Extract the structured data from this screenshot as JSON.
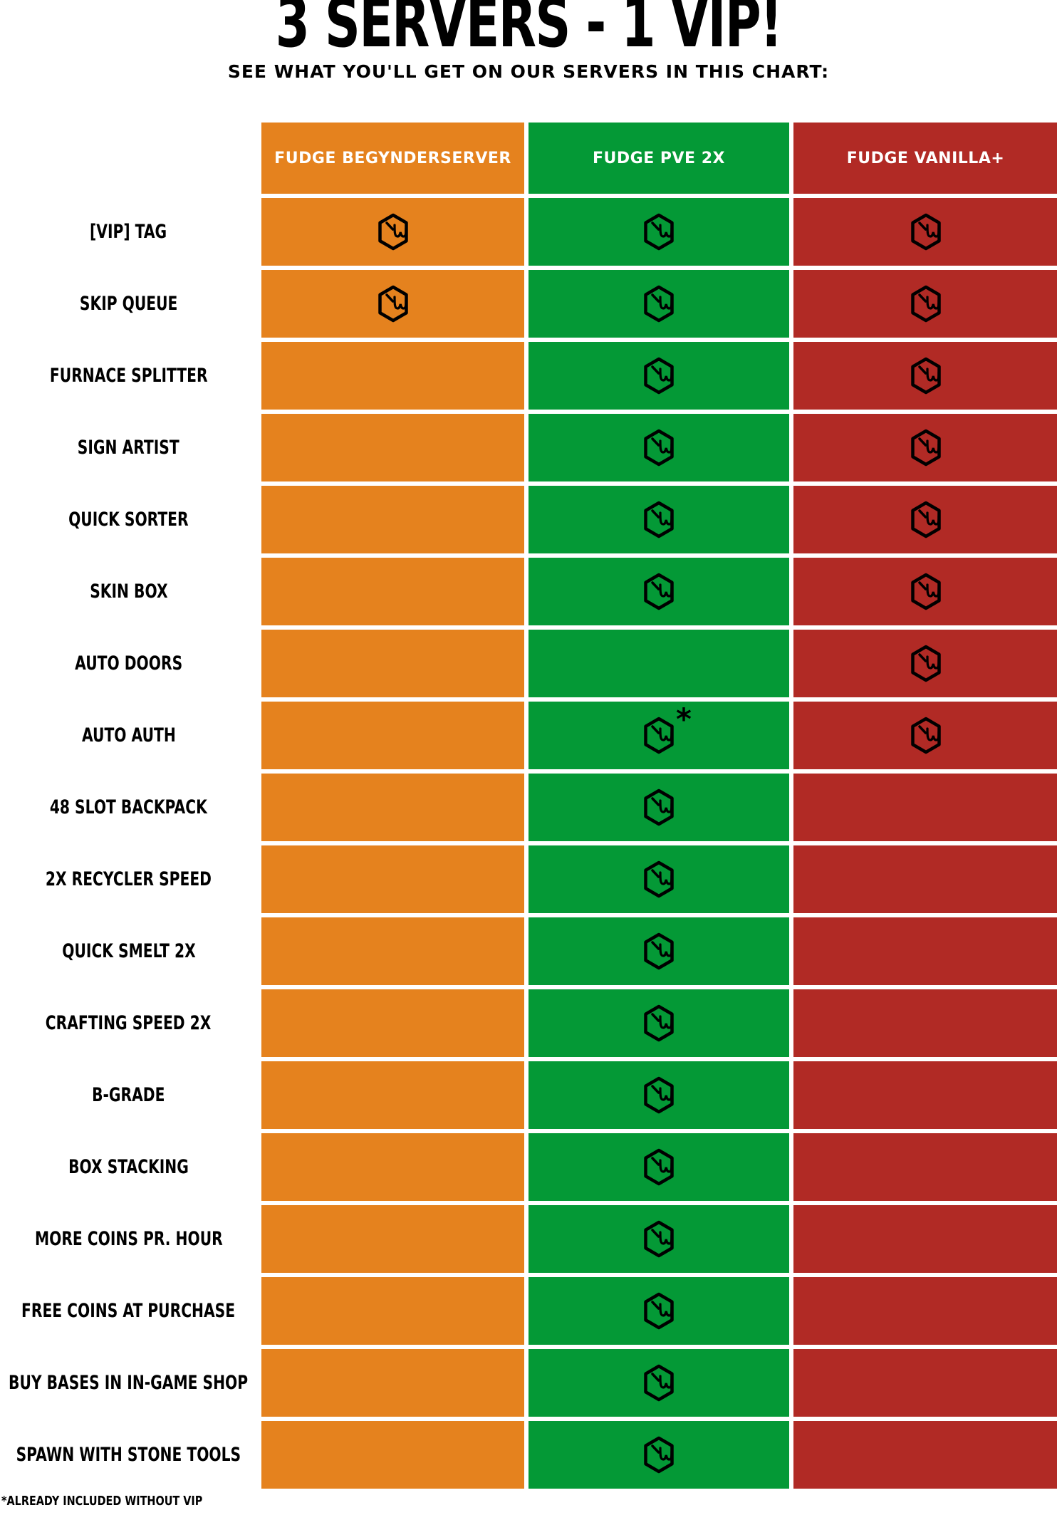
{
  "title": "3 SERVERS - 1 VIP!",
  "subtitle": "SEE WHAT YOU'LL GET ON OUR SERVERS IN THIS CHART:",
  "footnote": "*ALREADY INCLUDED WITHOUT VIP",
  "colors": {
    "orange": "#E5821E",
    "green": "#049936",
    "red": "#B12A25",
    "header_text": "#FFFFFF",
    "body_text": "#000000",
    "background": "#FFFFFF",
    "icon_stroke": "#000000"
  },
  "icon": {
    "name": "fudge-cube-icon",
    "meaning": "feature included (winking cube logo)"
  },
  "chart_data": {
    "type": "table",
    "title": "3 SERVERS - 1 VIP!",
    "subtitle": "SEE WHAT YOU'LL GET ON OUR SERVERS IN THIS CHART:",
    "columns": [
      "FUDGE BEGYNDERSERVER",
      "FUDGE PVE 2X",
      "FUDGE VANILLA+"
    ],
    "legend": {
      "yes": "included",
      "yes*": "included, already included without VIP",
      "no": "not included"
    },
    "rows": [
      {
        "feature": "[VIP] TAG",
        "cells": [
          "yes",
          "yes",
          "yes"
        ]
      },
      {
        "feature": "SKIP QUEUE",
        "cells": [
          "yes",
          "yes",
          "yes"
        ]
      },
      {
        "feature": "FURNACE SPLITTER",
        "cells": [
          "no",
          "yes",
          "yes"
        ]
      },
      {
        "feature": "SIGN ARTIST",
        "cells": [
          "no",
          "yes",
          "yes"
        ]
      },
      {
        "feature": "QUICK SORTER",
        "cells": [
          "no",
          "yes",
          "yes"
        ]
      },
      {
        "feature": "SKIN BOX",
        "cells": [
          "no",
          "yes",
          "yes"
        ]
      },
      {
        "feature": "AUTO DOORS",
        "cells": [
          "no",
          "no",
          "yes"
        ]
      },
      {
        "feature": "AUTO AUTH",
        "cells": [
          "no",
          "yes*",
          "yes"
        ]
      },
      {
        "feature": "48 SLOT BACKPACK",
        "cells": [
          "no",
          "yes",
          "no"
        ]
      },
      {
        "feature": "2X RECYCLER SPEED",
        "cells": [
          "no",
          "yes",
          "no"
        ]
      },
      {
        "feature": "QUICK SMELT 2X",
        "cells": [
          "no",
          "yes",
          "no"
        ]
      },
      {
        "feature": "CRAFTING SPEED 2X",
        "cells": [
          "no",
          "yes",
          "no"
        ]
      },
      {
        "feature": "B-GRADE",
        "cells": [
          "no",
          "yes",
          "no"
        ]
      },
      {
        "feature": "BOX STACKING",
        "cells": [
          "no",
          "yes",
          "no"
        ]
      },
      {
        "feature": "MORE COINS PR. HOUR",
        "cells": [
          "no",
          "yes",
          "no"
        ]
      },
      {
        "feature": "FREE COINS AT PURCHASE",
        "cells": [
          "no",
          "yes",
          "no"
        ]
      },
      {
        "feature": "BUY BASES IN IN-GAME SHOP",
        "cells": [
          "no",
          "yes",
          "no"
        ]
      },
      {
        "feature": "SPAWN WITH STONE TOOLS",
        "cells": [
          "no",
          "yes",
          "no"
        ]
      }
    ]
  },
  "columns_meta": [
    {
      "id": "fudge-begynderserver",
      "label": "FUDGE BEGYNDERSERVER",
      "color_key": "orange"
    },
    {
      "id": "fudge-pve-2x",
      "label": "FUDGE PVE 2X",
      "color_key": "green"
    },
    {
      "id": "fudge-vanilla-plus",
      "label": "FUDGE VANILLA+",
      "color_key": "red"
    }
  ]
}
